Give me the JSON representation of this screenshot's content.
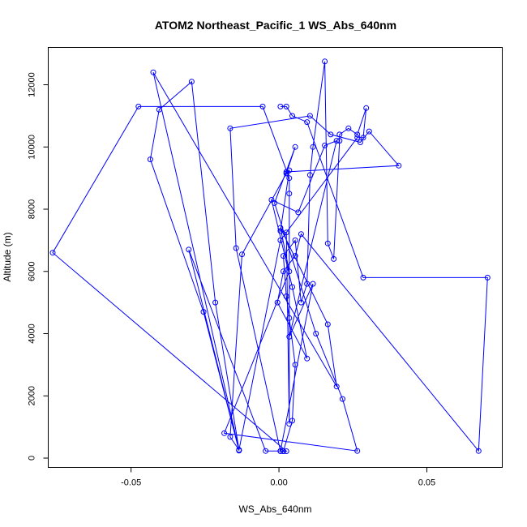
{
  "chart_data": {
    "type": "line",
    "title": "ATOM2 Northeast_Pacific_1 WS_Abs_640nm",
    "xlabel": "WS_Abs_640nm",
    "ylabel": "Altitude (m)",
    "xlim": [
      -0.078,
      0.0755
    ],
    "ylim": [
      -300,
      13200
    ],
    "xticks": [
      -0.05,
      0.0,
      0.05
    ],
    "xtick_labels": [
      "-0.05",
      "0.00",
      "0.05"
    ],
    "yticks": [
      0,
      2000,
      4000,
      6000,
      8000,
      10000,
      12000
    ],
    "ytick_labels": [
      "0",
      "2000",
      "4000",
      "6000",
      "8000",
      "10000",
      "12000"
    ],
    "grid": false,
    "colors": {
      "series": "#0000ff"
    },
    "series": [
      {
        "marker": "open-circle",
        "x": [
          0.0015,
          0.0045,
          0.0055,
          0.0035,
          0.0025,
          0.0015,
          0.0055,
          0.0075,
          0.0095,
          0.0105,
          0.0115,
          0.0155,
          0.0165,
          0.0185,
          0.0205,
          0.0205,
          0.0235,
          0.0265,
          0.0295,
          0.0285,
          0.0265,
          0.0005,
          -0.0135,
          -0.0165,
          -0.0125,
          0.0025,
          0.0035,
          0.0005,
          0.0025,
          0.0035,
          0.0035,
          0.0035,
          -0.0055,
          -0.0475,
          -0.0765,
          0.0025,
          0.0015,
          0.0005,
          -0.0145,
          -0.0165,
          0.0105,
          0.0175,
          0.0275,
          0.0305,
          0.0405,
          0.0025,
          0.0025,
          0.0055,
          -0.0015,
          0.0125,
          0.0215,
          0.0265,
          -0.0185,
          0.0035,
          0.0005,
          0.0165,
          0.0195,
          -0.0425,
          -0.0135,
          -0.0215,
          -0.0295,
          -0.0405,
          -0.0435,
          -0.0255,
          -0.0135,
          -0.0305,
          -0.0045,
          0.0005,
          0.0115,
          0.0035,
          0.0195,
          0.0155,
          0.0065,
          -0.0025,
          0.0045,
          0.0095,
          -0.0005,
          0.0015,
          0.0055,
          0.0075,
          0.0675,
          0.0705,
          0.0285,
          0.0095,
          0.0045,
          0.0025,
          0.0005
        ],
        "y": [
          220,
          1200,
          3000,
          4500,
          5200,
          6500,
          7000,
          5000,
          5600,
          9100,
          10000,
          12750,
          6900,
          6400,
          10200,
          10400,
          10600,
          10400,
          11250,
          10300,
          10300,
          7000,
          260,
          680,
          6550,
          9150,
          9250,
          7300,
          7250,
          1100,
          8500,
          9000,
          11300,
          11300,
          6600,
          220,
          220,
          220,
          6750,
          10600,
          11000,
          10400,
          10150,
          10500,
          9400,
          9200,
          9150,
          10000,
          8200,
          4000,
          1900,
          230,
          800,
          6000,
          7400,
          4300,
          2300,
          12400,
          260,
          5000,
          12100,
          11200,
          9600,
          4700,
          240,
          6700,
          230,
          230,
          5600,
          3900,
          10200,
          10050,
          7900,
          8300,
          5500,
          3200,
          5000,
          6000,
          6500,
          7200,
          230,
          5800,
          5800,
          10800,
          11000,
          11300,
          11300
        ]
      }
    ]
  }
}
